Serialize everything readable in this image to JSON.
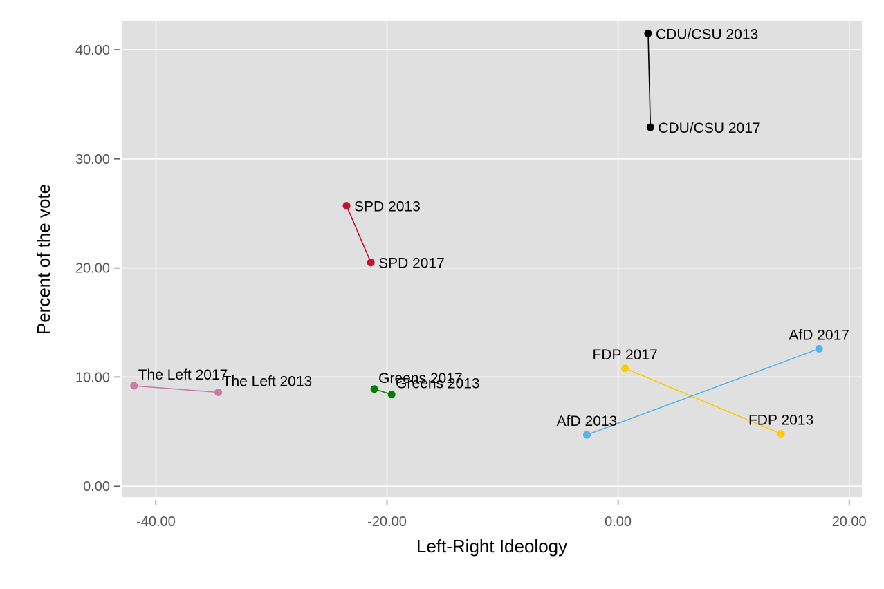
{
  "chart_data": {
    "type": "scatter",
    "title": "",
    "xlabel": "Left-Right Ideology",
    "ylabel": "Percent of the vote",
    "xlim": [
      -42.9,
      21.1
    ],
    "ylim": [
      -1.0,
      42.6
    ],
    "xticks": [
      -40,
      -20,
      0,
      20
    ],
    "xtick_labels": [
      "-40.00",
      "-20.00",
      "0.00",
      "20.00"
    ],
    "yticks": [
      0,
      10,
      20,
      30,
      40
    ],
    "ytick_labels": [
      "0.00",
      "10.00",
      "20.00",
      "30.00",
      "40.00"
    ],
    "grid": true,
    "legend": "none",
    "series": [
      {
        "name": "CDU/CSU",
        "color": "#000000",
        "points": [
          {
            "label": "CDU/CSU 2013",
            "x": 2.6,
            "y": 41.5,
            "label_pos": "right"
          },
          {
            "label": "CDU/CSU 2017",
            "x": 2.8,
            "y": 32.9,
            "label_pos": "right"
          }
        ]
      },
      {
        "name": "SPD",
        "color": "#C8102E",
        "points": [
          {
            "label": "SPD 2013",
            "x": -23.5,
            "y": 25.7,
            "label_pos": "right"
          },
          {
            "label": "SPD 2017",
            "x": -21.4,
            "y": 20.5,
            "label_pos": "right"
          }
        ]
      },
      {
        "name": "The Left",
        "color": "#CC79A7",
        "points": [
          {
            "label": "The Left 2013",
            "x": -34.6,
            "y": 8.6,
            "label_pos": "above-right"
          },
          {
            "label": "The Left 2017",
            "x": -41.9,
            "y": 9.2,
            "label_pos": "above-right"
          }
        ]
      },
      {
        "name": "Greens",
        "color": "#008000",
        "points": [
          {
            "label": "Greens 2013",
            "x": -19.6,
            "y": 8.4,
            "label_pos": "above-right"
          },
          {
            "label": "Greens 2017",
            "x": -21.1,
            "y": 8.9,
            "label_pos": "above-right"
          }
        ]
      },
      {
        "name": "FDP",
        "color": "#FFCC00",
        "points": [
          {
            "label": "FDP 2013",
            "x": 14.1,
            "y": 4.8,
            "label_pos": "above"
          },
          {
            "label": "FDP 2017",
            "x": 0.6,
            "y": 10.8,
            "label_pos": "above"
          }
        ]
      },
      {
        "name": "AfD",
        "color": "#56B4E9",
        "points": [
          {
            "label": "AfD 2013",
            "x": -2.7,
            "y": 4.7,
            "label_pos": "above"
          },
          {
            "label": "AfD 2017",
            "x": 17.4,
            "y": 12.6,
            "label_pos": "above"
          }
        ]
      }
    ]
  },
  "colors": {
    "panel_background": "#E0E0E0",
    "gridline": "#FFFFFF",
    "tick_text": "#555555"
  }
}
